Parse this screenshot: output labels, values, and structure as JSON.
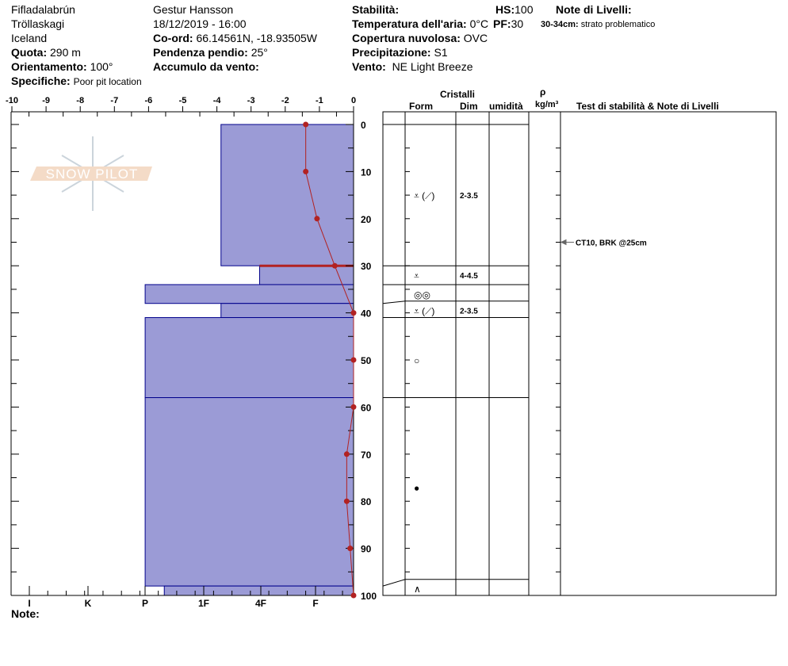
{
  "header": {
    "location": "Fifladalabrún",
    "region": "Tröllaskagi",
    "country": "Iceland",
    "elevation_label": "Quota:",
    "elevation": "290 m",
    "aspect_label": "Orientamento:",
    "aspect": "100°",
    "specifics_label": "Specifiche:",
    "specifics": "Poor pit location",
    "observer": "Gestur Hansson",
    "datetime": "18/12/2019 - 16:00",
    "coord_label": "Co-ord:",
    "coord": "66.14561N, -18.93505W",
    "slope_label": "Pendenza pendio:",
    "slope": "25°",
    "wind_loading_label": "Accumulo da vento:",
    "stability_label": "Stabilità:",
    "air_temp_label": "Temperatura dell'aria:",
    "air_temp": "0°C",
    "sky_label": "Copertura nuvolosa:",
    "sky": "OVC",
    "precip_label": "Precipitazione:",
    "precip": "S1",
    "wind_label": "Vento:",
    "wind": "NE Light Breeze",
    "hs_label": "HS:",
    "hs": "100",
    "pf_label": "PF:",
    "pf": "30",
    "layer_notes_label": "Note di Livelli:",
    "layer_note_range": "30-34cm:",
    "layer_note": "strato problematico"
  },
  "note_label": "Note:",
  "watermark": "SNOW PILOT",
  "table": {
    "crystals_label": "Cristalli",
    "form_label": "Form",
    "size_label": "Dim",
    "moisture_label": "umidità",
    "density_symbol": "ρ",
    "density_unit": "kg/m³",
    "stability_label": "Test di stabilità & Note di Livelli",
    "rows": [
      {
        "form": "⩡ (⟋)",
        "size": "2-3.5",
        "depth": 15
      },
      {
        "form": "⩡",
        "size": "4-4.5",
        "depth": 32
      },
      {
        "form": "◎◎",
        "size": "",
        "depth": 36
      },
      {
        "form": "⩡ (⟋)",
        "size": "2-3.5",
        "depth": 39.5
      },
      {
        "form": "○",
        "size": "",
        "depth": 50
      },
      {
        "form": "●",
        "size": "",
        "depth": 77
      },
      {
        "form": "∧",
        "size": "",
        "depth": 98.5
      }
    ],
    "test_result": {
      "text": "CT10, BRK @25cm",
      "depth": 25
    }
  },
  "colors": {
    "layer_fill": "#9b9bd6",
    "layer_stroke": "#00008b",
    "temp": "#b22222"
  },
  "chart_data": {
    "type": "snow-profile",
    "temp_axis": {
      "ticks": [
        "-10",
        "-9",
        "-8",
        "-7",
        "-6",
        "-5",
        "-4",
        "-3",
        "-2",
        "-1",
        "0"
      ],
      "range": [
        -10,
        0
      ]
    },
    "hardness_axis": {
      "ticks": [
        "I",
        "K",
        "P",
        "1F",
        "4F",
        "F"
      ]
    },
    "depth_axis": {
      "ticks": [
        "0",
        "10",
        "20",
        "30",
        "40",
        "50",
        "60",
        "70",
        "80",
        "90",
        "100"
      ],
      "range": [
        0,
        100
      ]
    },
    "layers": [
      {
        "top": 0,
        "bottom": 30,
        "hardness_value": -3.88
      },
      {
        "top": 30,
        "bottom": 34,
        "hardness_value": -2.75
      },
      {
        "top": 34,
        "bottom": 38,
        "hardness_value": -6.1
      },
      {
        "top": 38,
        "bottom": 41,
        "hardness_value": -3.88
      },
      {
        "top": 41,
        "bottom": 58,
        "hardness_value": -6.1
      },
      {
        "top": 58,
        "bottom": 98,
        "hardness_value": -6.1
      },
      {
        "top": 98,
        "bottom": 100,
        "hardness_value": -5.54
      }
    ],
    "critical_layer_depth": 30,
    "temperature": {
      "depth": [
        0,
        10,
        20,
        30,
        40,
        50,
        60,
        70,
        80,
        90,
        100
      ],
      "temp": [
        -1.4,
        -1.4,
        -1.07,
        -0.55,
        0,
        0,
        0,
        -0.2,
        -0.2,
        -0.1,
        0
      ]
    }
  }
}
